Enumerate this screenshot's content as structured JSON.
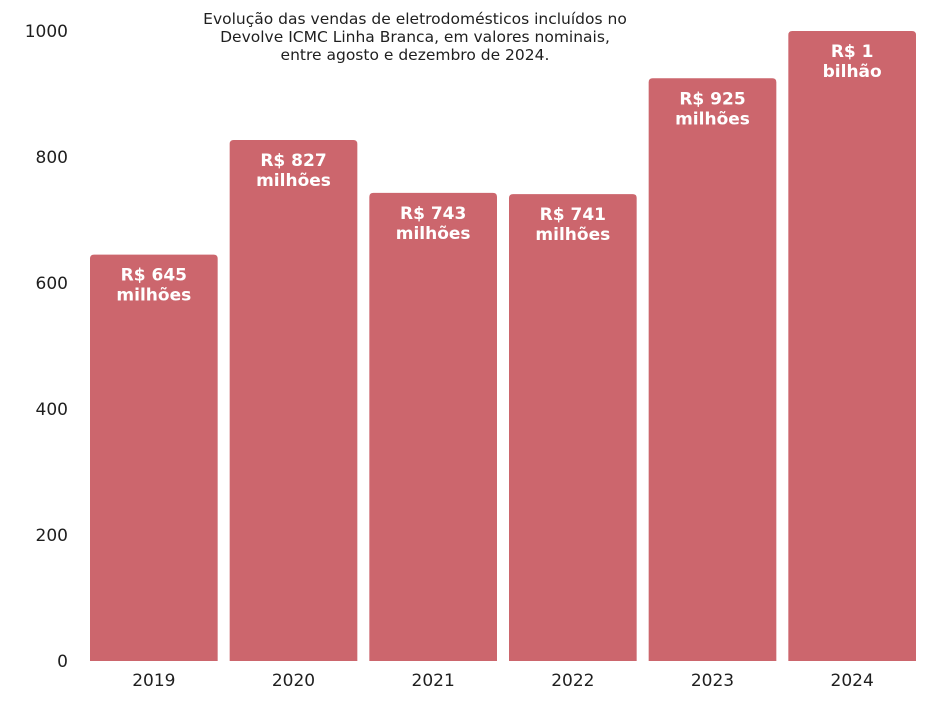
{
  "chart_data": {
    "type": "bar",
    "title_lines": [
      "Evolução das vendas de eletrodomésticos incluídos no",
      "Devolve ICMC Linha Branca, em valores nominais,",
      "entre agosto e dezembro de 2024."
    ],
    "categories": [
      "2019",
      "2020",
      "2021",
      "2022",
      "2023",
      "2024"
    ],
    "values": [
      645,
      827,
      743,
      741,
      925,
      1000
    ],
    "data_labels": [
      [
        "R$ 645",
        "milhões"
      ],
      [
        "R$ 827",
        "milhões"
      ],
      [
        "R$ 743",
        "milhões"
      ],
      [
        "R$ 741",
        "milhões"
      ],
      [
        "R$ 925",
        "milhões"
      ],
      [
        "R$ 1",
        "bilhão"
      ]
    ],
    "y_ticks": [
      "0",
      "200",
      "400",
      "600",
      "800",
      "1000"
    ],
    "ylim": [
      0,
      1000
    ],
    "grid": false,
    "legend": "none",
    "colors": {
      "bar": "#cc666d",
      "bar_label": "#ffffff",
      "axis_text": "#1f1f1f"
    }
  }
}
